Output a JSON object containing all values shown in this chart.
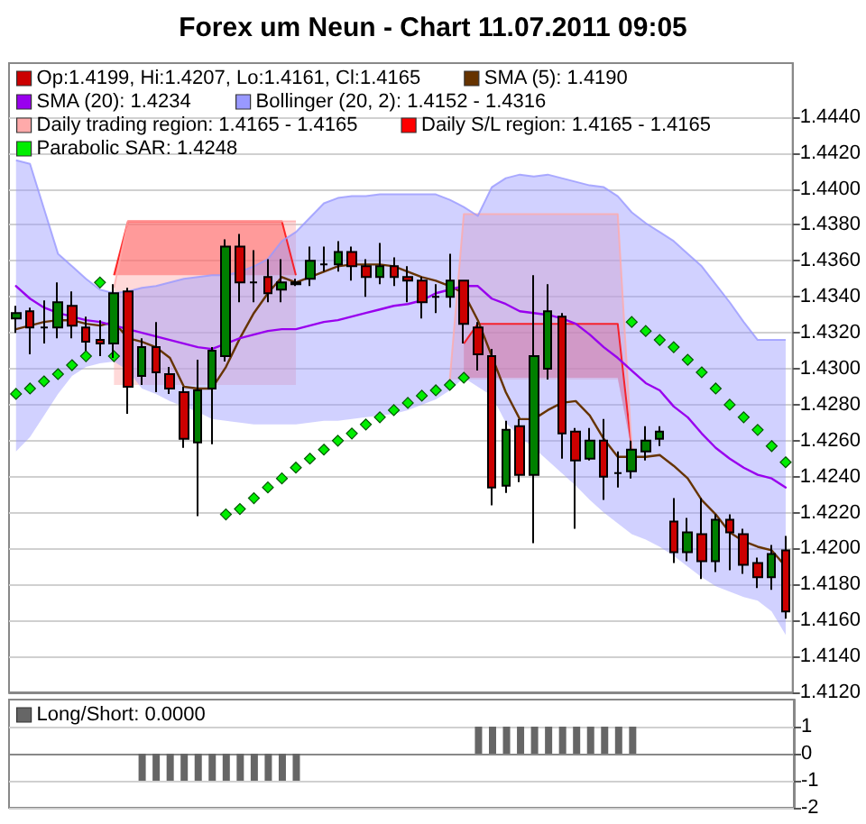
{
  "chart_data": [
    {
      "type": "candlestick",
      "title": "Forex um Neun - Chart 11.07.2011 09:05",
      "categories": [
        null,
        null,
        null,
        null,
        null,
        null,
        null,
        null,
        null,
        null,
        null,
        null,
        null,
        null,
        null,
        null,
        null,
        null,
        null,
        null,
        null,
        null,
        null,
        null,
        null,
        null,
        null,
        null,
        null,
        null,
        null,
        null,
        null,
        null,
        null,
        null,
        null,
        null,
        null,
        null,
        null,
        null,
        null,
        null,
        null,
        null,
        null,
        null,
        null,
        null,
        null,
        null,
        null,
        null,
        null,
        null
      ],
      "series": [
        {
          "type": "candlestick",
          "name": "Op:1.4199, Hi:1.4207, Lo:1.4161, Cl:1.4165",
          "ohlc": [
            [
              1.4328,
              1.4335,
              1.432,
              1.4331
            ],
            [
              1.4332,
              1.4334,
              1.4308,
              1.4323
            ],
            [
              1.4323,
              1.4338,
              1.4314,
              1.4323
            ],
            [
              1.4323,
              1.4348,
              1.4317,
              1.4337
            ],
            [
              1.4335,
              1.4343,
              1.4317,
              1.4324
            ],
            [
              1.4323,
              1.4329,
              1.431,
              1.4315
            ],
            [
              1.4316,
              1.4327,
              1.4307,
              1.4314
            ],
            [
              1.4314,
              1.4347,
              1.4306,
              1.4342
            ],
            [
              1.4343,
              1.4345,
              1.4275,
              1.429
            ],
            [
              1.4296,
              1.4317,
              1.4291,
              1.4312
            ],
            [
              1.4312,
              1.4326,
              1.4287,
              1.4298
            ],
            [
              1.4297,
              1.4301,
              1.4286,
              1.4289
            ],
            [
              1.4287,
              1.429,
              1.4256,
              1.4261
            ],
            [
              1.4259,
              1.4305,
              1.4218,
              1.4288
            ],
            [
              1.4289,
              1.4312,
              1.4258,
              1.431
            ],
            [
              1.4307,
              1.4372,
              1.4304,
              1.4368
            ],
            [
              1.4368,
              1.4375,
              1.4337,
              1.4348
            ],
            [
              1.4348,
              1.4366,
              1.4337,
              1.4348
            ],
            [
              1.4351,
              1.4361,
              1.4337,
              1.4342
            ],
            [
              1.4344,
              1.4361,
              1.4337,
              1.4348
            ],
            [
              1.4348,
              1.435,
              1.4346,
              1.4347
            ],
            [
              1.435,
              1.4368,
              1.4346,
              1.436
            ],
            [
              1.4358,
              1.4368,
              1.4354,
              1.4358
            ],
            [
              1.4358,
              1.4371,
              1.4354,
              1.4365
            ],
            [
              1.4365,
              1.4368,
              1.4349,
              1.4357
            ],
            [
              1.4357,
              1.4361,
              1.434,
              1.4351
            ],
            [
              1.4351,
              1.437,
              1.4347,
              1.4357
            ],
            [
              1.4357,
              1.4362,
              1.4346,
              1.4351
            ],
            [
              1.4351,
              1.4357,
              1.4337,
              1.4349
            ],
            [
              1.4349,
              1.4351,
              1.4328,
              1.4337
            ],
            [
              1.434,
              1.4347,
              1.4331,
              1.434
            ],
            [
              1.434,
              1.4364,
              1.4334,
              1.4349
            ],
            [
              1.4349,
              1.4349,
              1.4314,
              1.4325
            ],
            [
              1.4323,
              1.4326,
              1.4299,
              1.4308
            ],
            [
              1.4307,
              1.4311,
              1.4224,
              1.4234
            ],
            [
              1.4235,
              1.4271,
              1.4231,
              1.4266
            ],
            [
              1.4268,
              1.4272,
              1.4237,
              1.4241
            ],
            [
              1.4241,
              1.4352,
              1.4203,
              1.4307
            ],
            [
              1.43,
              1.4347,
              1.4294,
              1.4332
            ],
            [
              1.4329,
              1.4331,
              1.425,
              1.4264
            ],
            [
              1.4265,
              1.4267,
              1.4211,
              1.4249
            ],
            [
              1.425,
              1.4267,
              1.4249,
              1.426
            ],
            [
              1.426,
              1.4272,
              1.4227,
              1.424
            ],
            [
              1.4242,
              1.4254,
              1.4234,
              1.4242
            ],
            [
              1.4243,
              1.426,
              1.4239,
              1.4255
            ],
            [
              1.4254,
              1.4268,
              1.4249,
              1.426
            ],
            [
              1.4261,
              1.4268,
              1.4257,
              1.4265
            ],
            [
              1.4215,
              1.4228,
              1.4192,
              1.4198
            ],
            [
              1.4198,
              1.4217,
              1.4193,
              1.4209
            ],
            [
              1.4208,
              1.4228,
              1.4183,
              1.4193
            ],
            [
              1.4193,
              1.4219,
              1.4187,
              1.4216
            ],
            [
              1.4216,
              1.4219,
              1.4188,
              1.4209
            ],
            [
              1.4208,
              1.4211,
              1.4186,
              1.4191
            ],
            [
              1.4192,
              1.4195,
              1.4178,
              1.4184
            ],
            [
              1.4184,
              1.4202,
              1.4177,
              1.4197
            ],
            [
              1.4199,
              1.4207,
              1.4161,
              1.4165
            ]
          ],
          "colors": [
            "#008000",
            "#cc0000",
            "#000000",
            "#008000",
            "#cc0000",
            "#cc0000",
            "#cc0000",
            "#008000",
            "#cc0000",
            "#008000",
            "#cc0000",
            "#cc0000",
            "#cc0000",
            "#008000",
            "#008000",
            "#008000",
            "#cc0000",
            "#000000",
            "#cc0000",
            "#008000",
            "#000000",
            "#008000",
            "#000000",
            "#008000",
            "#cc0000",
            "#cc0000",
            "#008000",
            "#cc0000",
            "#cc0000",
            "#cc0000",
            "#000000",
            "#008000",
            "#cc0000",
            "#cc0000",
            "#cc0000",
            "#008000",
            "#cc0000",
            "#008000",
            "#008000",
            "#cc0000",
            "#cc0000",
            "#008000",
            "#cc0000",
            "#000000",
            "#008000",
            "#008000",
            "#008000",
            "#cc0000",
            "#008000",
            "#cc0000",
            "#008000",
            "#cc0000",
            "#cc0000",
            "#cc0000",
            "#008000",
            "#cc0000"
          ]
        },
        {
          "type": "line",
          "name": "SMA (5): 1.4190",
          "color": "#663300",
          "values": [
            1.4322,
            1.4324,
            1.4326,
            1.4327,
            1.4327,
            1.4325,
            1.4324,
            1.4326,
            1.4317,
            1.4315,
            1.4312,
            1.4306,
            1.429,
            1.4289,
            1.4289,
            1.4301,
            1.4317,
            1.4331,
            1.4342,
            1.4351,
            1.4348,
            1.4351,
            1.4354,
            1.4357,
            1.4358,
            1.4358,
            1.4358,
            1.4357,
            1.4354,
            1.4351,
            1.4349,
            1.4346,
            1.4342,
            1.4327,
            1.4307,
            1.4287,
            1.4272,
            1.4272,
            1.4277,
            1.4281,
            1.4282,
            1.4274,
            1.4261,
            1.4251,
            1.4251,
            1.4251,
            1.4252,
            1.4246,
            1.4239,
            1.4227,
            1.4219,
            1.4209,
            1.4204,
            1.4201,
            1.4199,
            1.419
          ]
        },
        {
          "type": "line",
          "name": "SMA (20): 1.4234",
          "color": "#9900ee",
          "values": [
            1.4346,
            1.4339,
            1.4334,
            1.4331,
            1.4329,
            1.4327,
            1.4326,
            1.4324,
            1.4322,
            1.432,
            1.4318,
            1.4316,
            1.4314,
            1.4312,
            1.4311,
            1.4314,
            1.4317,
            1.4319,
            1.4321,
            1.4322,
            1.4322,
            1.4324,
            1.4326,
            1.4327,
            1.4329,
            1.4331,
            1.4333,
            1.4335,
            1.4336,
            1.4338,
            1.4342,
            1.4344,
            1.4346,
            1.4346,
            1.4339,
            1.4336,
            1.4332,
            1.4331,
            1.433,
            1.4328,
            1.4325,
            1.4319,
            1.4312,
            1.4306,
            1.4299,
            1.4292,
            1.4288,
            1.4279,
            1.4273,
            1.4264,
            1.4256,
            1.425,
            1.4245,
            1.4241,
            1.4239,
            1.4234
          ]
        },
        {
          "type": "line",
          "name": "Bollinger (20, 2): 1.4152 - 1.4316",
          "color": "#9999ff",
          "values": [
            1.4416,
            1.4414,
            1.4389,
            1.4364,
            1.4357,
            1.435,
            1.4344,
            1.4342,
            1.4343,
            1.4345,
            1.4346,
            1.4348,
            1.435,
            1.4351,
            1.4352,
            1.4352,
            1.4354,
            1.4357,
            1.4361,
            1.4371,
            1.4376,
            1.4384,
            1.4392,
            1.4395,
            1.4396,
            1.4396,
            1.4397,
            1.4397,
            1.4397,
            1.4397,
            1.4397,
            1.4394,
            1.439,
            1.4385,
            1.4401,
            1.4406,
            1.4408,
            1.4407,
            1.4408,
            1.4406,
            1.4404,
            1.4402,
            1.4401,
            1.4396,
            1.4387,
            1.4381,
            1.4376,
            1.4371,
            1.4364,
            1.4357,
            1.4347,
            1.4337,
            1.4326,
            1.4316,
            1.4316,
            1.4316
          ],
          "upper": [
            1.4416,
            1.4414,
            1.4389,
            1.4364,
            1.4357,
            1.435,
            1.4344,
            1.4342,
            1.4343,
            1.4345,
            1.4346,
            1.4348,
            1.435,
            1.4351,
            1.4352,
            1.4352,
            1.4354,
            1.4357,
            1.4361,
            1.4371,
            1.4376,
            1.4384,
            1.4392,
            1.4395,
            1.4396,
            1.4396,
            1.4397,
            1.4397,
            1.4397,
            1.4397,
            1.4397,
            1.4394,
            1.439,
            1.4385,
            1.4401,
            1.4406,
            1.4408,
            1.4407,
            1.4408,
            1.4406,
            1.4404,
            1.4402,
            1.4401,
            1.4396,
            1.4387,
            1.4381,
            1.4376,
            1.4371,
            1.4364,
            1.4357,
            1.4347,
            1.4337,
            1.4326,
            1.4316,
            1.4316,
            1.4316
          ],
          "lower": [
            1.4254,
            1.4262,
            1.4274,
            1.4286,
            1.4296,
            1.4301,
            1.4303,
            1.4304,
            1.4299,
            1.4289,
            1.4286,
            1.4282,
            1.4279,
            1.4276,
            1.4272,
            1.4271,
            1.427,
            1.4269,
            1.4269,
            1.4269,
            1.4269,
            1.427,
            1.4271,
            1.4271,
            1.4272,
            1.4273,
            1.4274,
            1.4275,
            1.4277,
            1.428,
            1.4283,
            1.4288,
            1.4295,
            1.429,
            1.4285,
            1.427,
            1.4262,
            1.4256,
            1.4249,
            1.4242,
            1.4235,
            1.4227,
            1.422,
            1.4214,
            1.4208,
            1.4205,
            1.4201,
            1.4196,
            1.419,
            1.4184,
            1.4179,
            1.4176,
            1.4173,
            1.4171,
            1.4165,
            1.4152
          ]
        },
        {
          "type": "line",
          "name": "Daily trading region: 1.4165 - 1.4165",
          "color": "#ffaaaa",
          "values": [
            null,
            null,
            null,
            null,
            null,
            null,
            null,
            1.4345,
            1.4382,
            1.4382,
            1.4382,
            1.4382,
            1.4382,
            1.4382,
            1.4382,
            1.4382,
            1.4382,
            1.4382,
            1.4382,
            1.4382,
            1.4382,
            null,
            null,
            null,
            null,
            null,
            null,
            null,
            null,
            null,
            null,
            1.4294,
            1.4386,
            1.4386,
            1.4386,
            1.4386,
            1.4386,
            1.4386,
            1.4386,
            1.4386,
            1.4386,
            1.4386,
            1.4386,
            1.4386,
            1.4255,
            null,
            null,
            null,
            null,
            null,
            null,
            null,
            null,
            null,
            null,
            null
          ],
          "upper": [
            null,
            null,
            null,
            null,
            null,
            null,
            null,
            1.4345,
            1.4382,
            1.4382,
            1.4382,
            1.4382,
            1.4382,
            1.4382,
            1.4382,
            1.4382,
            1.4382,
            1.4382,
            1.4382,
            1.4382,
            1.4382,
            null,
            null,
            null,
            null,
            null,
            null,
            null,
            null,
            null,
            null,
            1.4294,
            1.4386,
            1.4386,
            1.4386,
            1.4386,
            1.4386,
            1.4386,
            1.4386,
            1.4386,
            1.4386,
            1.4386,
            1.4386,
            1.4386,
            1.4255,
            null,
            null,
            null,
            null,
            null,
            null,
            null,
            null,
            null,
            null,
            null
          ],
          "lower": [
            null,
            null,
            null,
            null,
            null,
            null,
            null,
            1.4291,
            1.4291,
            1.4291,
            1.4291,
            1.4291,
            1.4291,
            1.4291,
            1.4291,
            1.4291,
            1.4291,
            1.4291,
            1.4291,
            1.4291,
            1.4291,
            null,
            null,
            null,
            null,
            null,
            null,
            null,
            null,
            null,
            null,
            1.4294,
            1.4294,
            1.4294,
            1.4294,
            1.4294,
            1.4294,
            1.4294,
            1.4294,
            1.4294,
            1.4294,
            1.4294,
            1.4294,
            1.4294,
            1.4255,
            null,
            null,
            null,
            null,
            null,
            null,
            null,
            null,
            null,
            null,
            null
          ]
        },
        {
          "type": "line",
          "name": "Daily S/L region: 1.4165 - 1.4165",
          "color": "#ff0000",
          "values": [
            null,
            null,
            null,
            null,
            null,
            null,
            null,
            1.4352,
            1.4382,
            1.4382,
            1.4382,
            1.4382,
            1.4382,
            1.4382,
            1.4382,
            1.4382,
            1.4382,
            1.4382,
            1.4382,
            1.4382,
            1.4352,
            null,
            null,
            null,
            null,
            null,
            null,
            null,
            null,
            null,
            null,
            null,
            1.4314,
            1.4325,
            1.4325,
            1.4325,
            1.4325,
            1.4325,
            1.4325,
            1.4325,
            1.4325,
            1.4325,
            1.4325,
            1.4325,
            1.4255,
            null,
            null,
            null,
            null,
            null,
            null,
            null,
            null,
            null,
            null,
            null
          ],
          "upper": [
            null,
            null,
            null,
            null,
            null,
            null,
            null,
            1.4352,
            1.4382,
            1.4382,
            1.4382,
            1.4382,
            1.4382,
            1.4382,
            1.4382,
            1.4382,
            1.4382,
            1.4382,
            1.4382,
            1.4382,
            1.4352,
            null,
            null,
            null,
            null,
            null,
            null,
            null,
            null,
            null,
            null,
            null,
            1.4314,
            1.4325,
            1.4325,
            1.4325,
            1.4325,
            1.4325,
            1.4325,
            1.4325,
            1.4325,
            1.4325,
            1.4325,
            1.4325,
            1.4255,
            null,
            null,
            null,
            null,
            null,
            null,
            null,
            null,
            null,
            null,
            null
          ],
          "lower": [
            null,
            null,
            null,
            null,
            null,
            null,
            null,
            1.4352,
            1.4352,
            1.4352,
            1.4352,
            1.4352,
            1.4352,
            1.4352,
            1.4352,
            1.4352,
            1.4352,
            1.4352,
            1.4352,
            1.4352,
            1.4352,
            null,
            null,
            null,
            null,
            null,
            null,
            null,
            null,
            null,
            null,
            null,
            1.4295,
            1.4295,
            1.4295,
            1.4295,
            1.4295,
            1.4295,
            1.4295,
            1.4295,
            1.4295,
            1.4295,
            1.4295,
            1.4295,
            1.4255,
            null,
            null,
            null,
            null,
            null,
            null,
            null,
            null,
            null,
            null,
            null
          ]
        },
        {
          "type": "scatter",
          "name": "Parabolic SAR: 1.4248",
          "color": "#00ee00",
          "marker": "diamond",
          "values": [
            1.4286,
            1.4289,
            1.4293,
            1.4297,
            1.4302,
            1.4307,
            1.4348,
            1.4307,
            null,
            null,
            null,
            null,
            null,
            null,
            null,
            1.4219,
            1.4222,
            1.4228,
            1.4234,
            1.4239,
            1.4245,
            1.425,
            1.4255,
            1.426,
            1.4264,
            1.4269,
            1.4273,
            1.4277,
            1.4281,
            1.4285,
            1.4288,
            1.4291,
            1.4295,
            null,
            null,
            null,
            null,
            null,
            null,
            null,
            null,
            null,
            null,
            null,
            1.4326,
            1.4321,
            1.4316,
            1.4312,
            1.4305,
            1.4298,
            1.4289,
            1.428,
            1.4273,
            1.4266,
            1.4257,
            1.4248
          ]
        }
      ],
      "ylim": [
        1.412,
        1.447
      ],
      "yticks": [
        {
          "value": 1.412,
          "label": "1.4120"
        },
        {
          "value": 1.414,
          "label": "1.4140"
        },
        {
          "value": 1.416,
          "label": "1.4160"
        },
        {
          "value": 1.418,
          "label": "1.4180"
        },
        {
          "value": 1.42,
          "label": "1.4200"
        },
        {
          "value": 1.422,
          "label": "1.4220"
        },
        {
          "value": 1.424,
          "label": "1.4240"
        },
        {
          "value": 1.426,
          "label": "1.4260"
        },
        {
          "value": 1.428,
          "label": "1.4280"
        },
        {
          "value": 1.43,
          "label": "1.4300"
        },
        {
          "value": 1.432,
          "label": "1.4320"
        },
        {
          "value": 1.434,
          "label": "1.4340"
        },
        {
          "value": 1.436,
          "label": "1.4360"
        },
        {
          "value": 1.438,
          "label": "1.4380"
        },
        {
          "value": 1.44,
          "label": "1.4400"
        },
        {
          "value": 1.442,
          "label": "1.4420"
        },
        {
          "value": 1.444,
          "label": "1.4440"
        }
      ],
      "grid": "y",
      "legend": "top",
      "tick_labels": "y"
    },
    {
      "type": "bar",
      "categories": [
        null,
        null,
        null,
        null,
        null,
        null,
        null,
        null,
        null,
        null,
        null,
        null,
        null,
        null,
        null,
        null,
        null,
        null,
        null,
        null,
        null,
        null,
        null,
        null,
        null,
        null,
        null,
        null,
        null,
        null,
        null,
        null,
        null,
        null,
        null,
        null,
        null,
        null,
        null,
        null,
        null,
        null,
        null,
        null,
        null,
        null,
        null,
        null,
        null,
        null,
        null,
        null,
        null,
        null,
        null,
        null
      ],
      "series": [
        {
          "name": "Long/Short: 0.0000",
          "color": "#666666",
          "values": [
            0,
            0,
            0,
            0,
            0,
            0,
            0,
            0,
            0,
            -1,
            -1,
            -1,
            -1,
            -1,
            -1,
            -1,
            -1,
            -1,
            -1,
            -1,
            -1,
            0,
            0,
            0,
            0,
            0,
            0,
            0,
            0,
            0,
            0,
            0,
            0,
            1,
            1,
            1,
            1,
            1,
            1,
            1,
            1,
            1,
            1,
            1,
            1,
            0,
            0,
            0,
            0,
            0,
            0,
            0,
            0,
            0,
            0,
            0
          ]
        }
      ],
      "ylim": [
        -2,
        2
      ],
      "yticks": [
        -2,
        -1,
        0,
        1
      ],
      "grid": "y",
      "legend": "top left",
      "tick_labels": "y"
    }
  ]
}
